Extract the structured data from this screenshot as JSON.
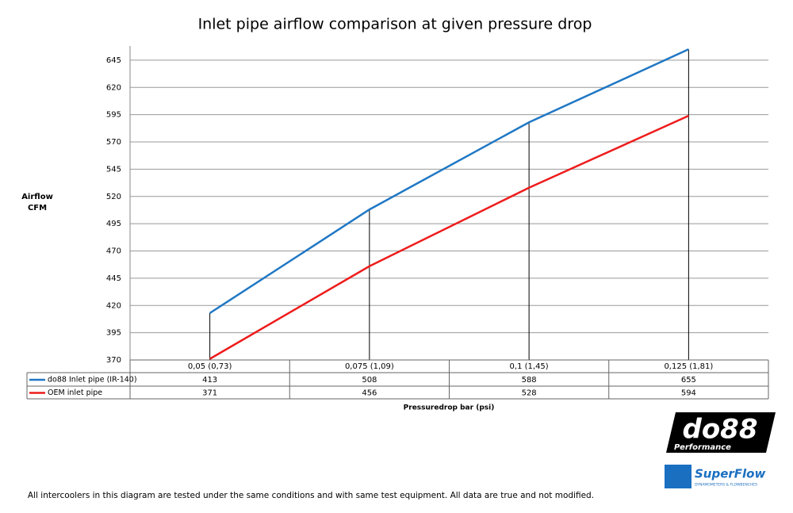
{
  "chart_data": {
    "type": "line",
    "title": "Inlet pipe airflow comparison at given pressure drop",
    "ylabel": [
      "Airflow",
      "CFM"
    ],
    "xlabel": "Pressuredrop bar (psi)",
    "categories": [
      "0,05 (0,73)",
      "0,075 (1,09)",
      "0,1 (1,45)",
      "0,125 (1,81)"
    ],
    "series": [
      {
        "name": "do88 Inlet pipe (IR-140)",
        "color": "#1f77c4",
        "values": [
          413,
          508,
          588,
          655
        ]
      },
      {
        "name": "OEM inlet pipe",
        "color": "#ee1c1c",
        "values": [
          371,
          456,
          528,
          594
        ]
      }
    ],
    "ylim": [
      370,
      658
    ],
    "yticks": [
      370,
      395,
      420,
      445,
      470,
      495,
      520,
      545,
      570,
      595,
      620,
      645
    ],
    "grid": true,
    "data_table": true
  },
  "logos": {
    "do88": "do88",
    "do88_sub": "Performance",
    "superflow": "SuperFlow",
    "superflow_sub": "DYNAMOMETERS & FLOWBENCHES"
  },
  "footnote": "All intercoolers in this diagram are tested under the same conditions and with same test equipment. All data are true and not modified."
}
